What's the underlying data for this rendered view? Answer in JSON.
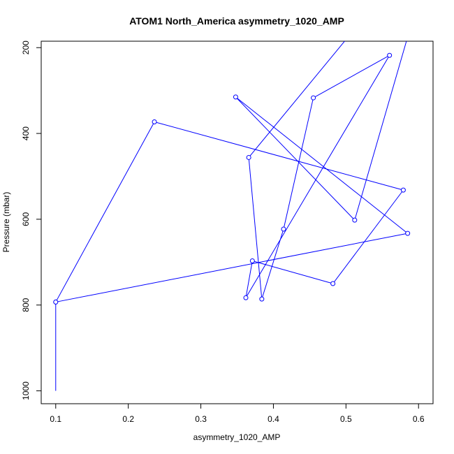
{
  "chart_data": {
    "type": "line",
    "title": "ATOM1 North_America asymmetry_1020_AMP",
    "xlabel": "asymmetry_1020_AMP",
    "ylabel": "Pressure (mbar)",
    "xlim": [
      0.08,
      0.62
    ],
    "ylim": [
      1030,
      185
    ],
    "y_reversed": true,
    "x_ticks": [
      0.1,
      0.2,
      0.3,
      0.4,
      0.5,
      0.6
    ],
    "x_tick_labels": [
      "0.1",
      "0.2",
      "0.3",
      "0.4",
      "0.5",
      "0.6"
    ],
    "y_ticks": [
      200,
      400,
      600,
      800,
      1000
    ],
    "y_tick_labels": [
      "200",
      "400",
      "600",
      "800",
      "1000"
    ],
    "grid": false,
    "color": "#0000ff",
    "series": [
      {
        "points": [
          {
            "x": 0.1,
            "y": 1000
          },
          {
            "x": 0.1,
            "y": 793
          },
          {
            "x": 0.236,
            "y": 373
          },
          {
            "x": 0.579,
            "y": 532
          },
          {
            "x": 0.482,
            "y": 750
          },
          {
            "x": 0.371,
            "y": 697
          },
          {
            "x": 0.362,
            "y": 783
          },
          {
            "x": 0.56,
            "y": 218
          },
          {
            "x": 0.455,
            "y": 317
          },
          {
            "x": 0.414,
            "y": 623
          },
          {
            "x": 0.384,
            "y": 786
          },
          {
            "x": 0.366,
            "y": 456
          },
          {
            "x": 0.503,
            "y": 175
          },
          {
            "x": 0.585,
            "y": 175
          },
          {
            "x": 0.512,
            "y": 602
          },
          {
            "x": 0.348,
            "y": 315
          },
          {
            "x": 0.585,
            "y": 633
          },
          {
            "x": 0.1,
            "y": 793
          }
        ],
        "marker_flags": [
          false,
          true,
          true,
          true,
          true,
          true,
          true,
          true,
          true,
          true,
          true,
          true,
          false,
          false,
          true,
          true,
          true,
          true
        ]
      }
    ]
  }
}
